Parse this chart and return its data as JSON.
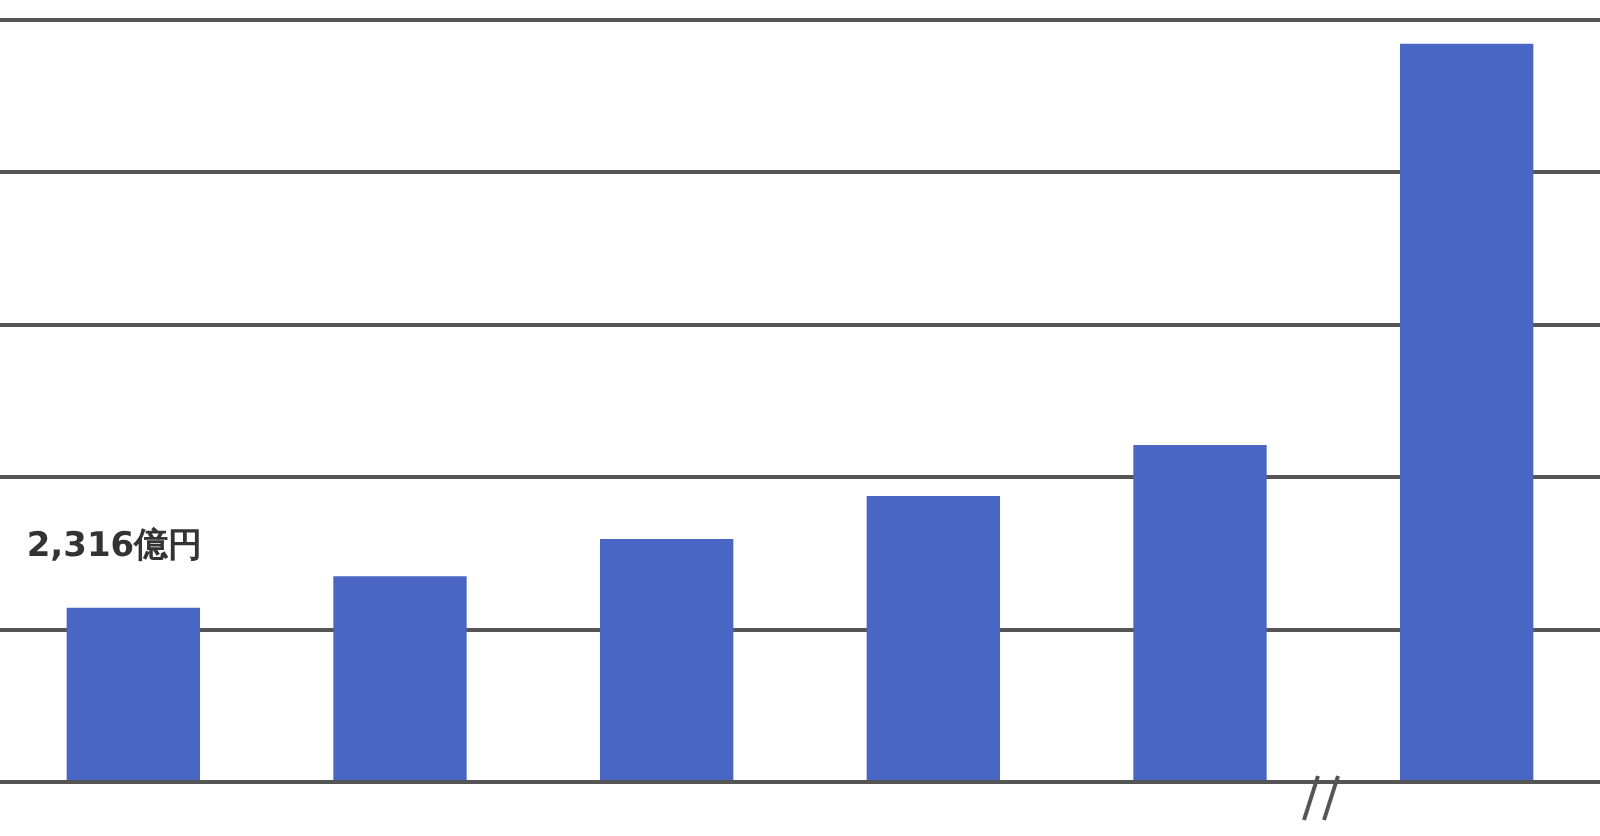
{
  "chart_data": {
    "type": "bar",
    "categories": [
      null,
      null,
      null,
      null,
      null,
      null
    ],
    "values": [
      2316,
      2732,
      3227,
      3799,
      4476,
      9810
    ],
    "value_labels": [
      "2,316億円",
      null,
      null,
      null,
      null,
      null
    ],
    "color": "#4a66c4",
    "grid": "y"
  }
}
